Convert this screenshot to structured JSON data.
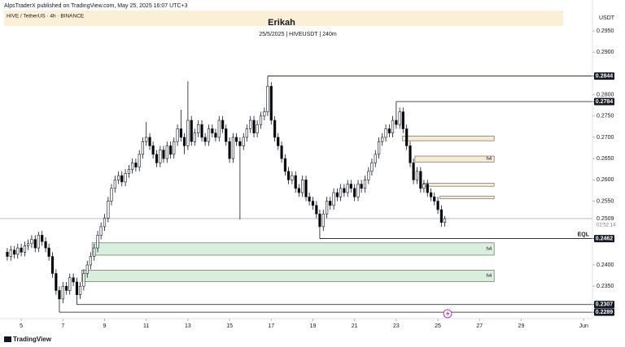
{
  "chart_data": {
    "type": "candlestick",
    "attribution": "AlpsTraderX published on TradingView.com, May 25, 2025 16:07 UTC+3",
    "symbol": "HIVE / TetherUS · 4h · BINANCE",
    "title": "Erikah",
    "subtitle": "25/5/2025 | HIVEUSDT | 240m",
    "y_unit": "USDT",
    "brand": "TradingView",
    "up_color": "#ffffff",
    "down_color": "#000000",
    "grid": false,
    "xlim": [
      3.98,
      32.42
    ],
    "ylim": [
      0.2274,
      0.2996
    ],
    "xticks": [
      5,
      7,
      9,
      11,
      13,
      15,
      17,
      19,
      21,
      23,
      25,
      27,
      29,
      {
        "value": 32,
        "label": "Jun"
      }
    ],
    "yticks": [
      {
        "value": 0.295,
        "label": "0.2950"
      },
      {
        "value": 0.29,
        "label": "0.2900"
      },
      {
        "value": 0.28,
        "label": "0.2800"
      },
      {
        "value": 0.275,
        "label": "0.2750"
      },
      {
        "value": 0.27,
        "label": "0.2700"
      },
      {
        "value": 0.265,
        "label": "0.2650"
      },
      {
        "value": 0.26,
        "label": "0.2600"
      },
      {
        "value": 0.255,
        "label": "0.2550"
      },
      {
        "value": 0.24,
        "label": "0.2400"
      },
      {
        "value": 0.235,
        "label": "0.2350"
      }
    ],
    "x": [
      4.33,
      4.5,
      4.67,
      4.83,
      5,
      5.17,
      5.33,
      5.5,
      5.67,
      5.83,
      6,
      6.17,
      6.33,
      6.5,
      6.67,
      6.83,
      7,
      7.17,
      7.33,
      7.5,
      7.67,
      7.83,
      8,
      8.17,
      8.33,
      8.5,
      8.67,
      8.83,
      9,
      9.17,
      9.33,
      9.5,
      9.67,
      9.83,
      10,
      10.17,
      10.33,
      10.5,
      10.67,
      10.83,
      11,
      11.17,
      11.33,
      11.5,
      11.67,
      11.83,
      12,
      12.17,
      12.33,
      12.5,
      12.67,
      12.83,
      13,
      13.17,
      13.33,
      13.5,
      13.67,
      13.83,
      14,
      14.17,
      14.33,
      14.5,
      14.67,
      14.83,
      15,
      15.17,
      15.33,
      15.5,
      15.67,
      15.83,
      16,
      16.17,
      16.33,
      16.5,
      16.67,
      16.83,
      17,
      17.17,
      17.33,
      17.5,
      17.67,
      17.83,
      18,
      18.17,
      18.33,
      18.5,
      18.67,
      18.83,
      19,
      19.17,
      19.33,
      19.5,
      19.67,
      19.83,
      20,
      20.17,
      20.33,
      20.5,
      20.67,
      20.83,
      21,
      21.17,
      21.33,
      21.5,
      21.67,
      21.83,
      22,
      22.17,
      22.33,
      22.5,
      22.67,
      22.83,
      23,
      23.17,
      23.33,
      23.5,
      23.67,
      23.83,
      24,
      24.17,
      24.33,
      24.5,
      24.67,
      24.83,
      25,
      25.17,
      25.33
    ],
    "open": [
      0.243,
      0.242,
      0.2435,
      0.2425,
      0.244,
      0.243,
      0.2445,
      0.245,
      0.246,
      0.244,
      0.247,
      0.2455,
      0.244,
      0.242,
      0.238,
      0.234,
      0.232,
      0.235,
      0.234,
      0.237,
      0.236,
      0.233,
      0.235,
      0.238,
      0.24,
      0.242,
      0.244,
      0.247,
      0.249,
      0.251,
      0.255,
      0.258,
      0.26,
      0.261,
      0.2595,
      0.2615,
      0.2625,
      0.264,
      0.263,
      0.266,
      0.269,
      0.27,
      0.268,
      0.266,
      0.264,
      0.267,
      0.265,
      0.268,
      0.266,
      0.269,
      0.272,
      0.27,
      0.268,
      0.274,
      0.269,
      0.271,
      0.273,
      0.27,
      0.269,
      0.272,
      0.271,
      0.27,
      0.274,
      0.272,
      0.269,
      0.265,
      0.27,
      0.269,
      0.268,
      0.27,
      0.272,
      0.274,
      0.271,
      0.273,
      0.275,
      0.276,
      0.282,
      0.274,
      0.27,
      0.268,
      0.265,
      0.262,
      0.26,
      0.261,
      0.258,
      0.257,
      0.26,
      0.256,
      0.255,
      0.254,
      0.252,
      0.249,
      0.252,
      0.255,
      0.254,
      0.257,
      0.256,
      0.258,
      0.257,
      0.259,
      0.258,
      0.256,
      0.259,
      0.258,
      0.26,
      0.262,
      0.264,
      0.266,
      0.269,
      0.27,
      0.272,
      0.271,
      0.274,
      0.273,
      0.276,
      0.272,
      0.268,
      0.264,
      0.26,
      0.262,
      0.258,
      0.259,
      0.257,
      0.256,
      0.255,
      0.253,
      0.25
    ],
    "high": [
      0.244,
      0.2445,
      0.2445,
      0.245,
      0.245,
      0.2455,
      0.246,
      0.247,
      0.247,
      0.2478,
      0.248,
      0.2465,
      0.245,
      0.243,
      0.239,
      0.235,
      0.236,
      0.236,
      0.238,
      0.238,
      0.237,
      0.236,
      0.239,
      0.241,
      0.243,
      0.245,
      0.248,
      0.25,
      0.252,
      0.256,
      0.259,
      0.261,
      0.262,
      0.262,
      0.2625,
      0.2635,
      0.265,
      0.265,
      0.267,
      0.27,
      0.2736,
      0.271,
      0.269,
      0.267,
      0.268,
      0.268,
      0.269,
      0.269,
      0.27,
      0.273,
      0.2765,
      0.271,
      0.2832,
      0.275,
      0.272,
      0.274,
      0.274,
      0.271,
      0.273,
      0.273,
      0.272,
      0.275,
      0.275,
      0.273,
      0.27,
      0.271,
      0.271,
      0.27,
      0.271,
      0.273,
      0.275,
      0.275,
      0.274,
      0.276,
      0.277,
      0.2844,
      0.283,
      0.275,
      0.271,
      0.269,
      0.266,
      0.263,
      0.262,
      0.262,
      0.259,
      0.261,
      0.261,
      0.257,
      0.256,
      0.255,
      0.253,
      0.253,
      0.256,
      0.256,
      0.258,
      0.258,
      0.259,
      0.259,
      0.26,
      0.26,
      0.259,
      0.26,
      0.26,
      0.261,
      0.263,
      0.265,
      0.267,
      0.27,
      0.271,
      0.273,
      0.273,
      0.275,
      0.2784,
      0.277,
      0.277,
      0.273,
      0.269,
      0.265,
      0.263,
      0.263,
      0.26,
      0.26,
      0.258,
      0.257,
      0.256,
      0.254,
      0.2515
    ],
    "low": [
      0.241,
      0.241,
      0.2415,
      0.2415,
      0.242,
      0.242,
      0.2435,
      0.244,
      0.243,
      0.243,
      0.2445,
      0.243,
      0.241,
      0.237,
      0.233,
      0.2289,
      0.231,
      0.233,
      0.233,
      0.235,
      0.2307,
      0.232,
      0.234,
      0.237,
      0.239,
      0.241,
      0.243,
      0.246,
      0.248,
      0.25,
      0.254,
      0.257,
      0.259,
      0.2585,
      0.2585,
      0.2605,
      0.2615,
      0.262,
      0.262,
      0.265,
      0.268,
      0.267,
      0.265,
      0.263,
      0.263,
      0.264,
      0.264,
      0.265,
      0.265,
      0.268,
      0.269,
      0.266,
      0.267,
      0.268,
      0.268,
      0.27,
      0.269,
      0.268,
      0.268,
      0.27,
      0.269,
      0.269,
      0.271,
      0.268,
      0.264,
      0.264,
      0.268,
      0.2507,
      0.267,
      0.269,
      0.271,
      0.27,
      0.27,
      0.272,
      0.274,
      0.275,
      0.273,
      0.269,
      0.267,
      0.264,
      0.261,
      0.259,
      0.259,
      0.257,
      0.256,
      0.256,
      0.255,
      0.254,
      0.253,
      0.251,
      0.2462,
      0.248,
      0.251,
      0.253,
      0.253,
      0.255,
      0.255,
      0.256,
      0.256,
      0.257,
      0.255,
      0.255,
      0.257,
      0.257,
      0.259,
      0.261,
      0.263,
      0.265,
      0.268,
      0.269,
      0.27,
      0.27,
      0.272,
      0.272,
      0.271,
      0.267,
      0.263,
      0.259,
      0.259,
      0.257,
      0.257,
      0.256,
      0.255,
      0.254,
      0.252,
      0.249,
      0.249
    ],
    "close": [
      0.242,
      0.2435,
      0.2425,
      0.244,
      0.243,
      0.2445,
      0.245,
      0.246,
      0.244,
      0.247,
      0.2455,
      0.244,
      0.242,
      0.238,
      0.234,
      0.232,
      0.235,
      0.234,
      0.237,
      0.236,
      0.233,
      0.235,
      0.238,
      0.24,
      0.242,
      0.244,
      0.247,
      0.249,
      0.251,
      0.255,
      0.258,
      0.26,
      0.261,
      0.2595,
      0.2615,
      0.2625,
      0.264,
      0.263,
      0.266,
      0.269,
      0.27,
      0.268,
      0.266,
      0.264,
      0.267,
      0.265,
      0.268,
      0.266,
      0.269,
      0.272,
      0.27,
      0.268,
      0.274,
      0.269,
      0.271,
      0.273,
      0.27,
      0.269,
      0.272,
      0.271,
      0.27,
      0.274,
      0.272,
      0.269,
      0.265,
      0.27,
      0.269,
      0.268,
      0.27,
      0.272,
      0.274,
      0.271,
      0.273,
      0.275,
      0.276,
      0.282,
      0.274,
      0.27,
      0.268,
      0.265,
      0.262,
      0.26,
      0.261,
      0.258,
      0.257,
      0.26,
      0.256,
      0.255,
      0.254,
      0.252,
      0.249,
      0.252,
      0.255,
      0.254,
      0.257,
      0.256,
      0.258,
      0.257,
      0.259,
      0.258,
      0.256,
      0.259,
      0.258,
      0.26,
      0.262,
      0.264,
      0.266,
      0.269,
      0.27,
      0.272,
      0.271,
      0.274,
      0.273,
      0.276,
      0.272,
      0.268,
      0.264,
      0.26,
      0.262,
      0.258,
      0.259,
      0.257,
      0.256,
      0.255,
      0.253,
      0.25,
      0.2509
    ],
    "last_price": 0.2509,
    "countdown": "02:52:14",
    "levels": [
      {
        "value": 0.2844,
        "from": 16.83
      },
      {
        "value": 0.2784,
        "from": 23
      },
      {
        "value": 0.2462,
        "from": 19.33,
        "note": "EQL"
      },
      {
        "value": 0.2307,
        "from": 7.67
      },
      {
        "value": 0.2289,
        "from": 6.83
      }
    ],
    "zones": [
      {
        "from": 8.4,
        "to": 27.7,
        "low": 0.2423,
        "high": 0.2452,
        "color": "#d9efdd",
        "label": "h4"
      },
      {
        "from": 7.9,
        "to": 27.7,
        "low": 0.2361,
        "high": 0.2388,
        "color": "#d9efdd",
        "label": "h4"
      },
      {
        "from": 23.3,
        "to": 27.7,
        "low": 0.2692,
        "high": 0.2703,
        "color": "#f7ecd2"
      },
      {
        "from": 23.9,
        "to": 27.7,
        "low": 0.2642,
        "high": 0.2656,
        "color": "#f7ecd2",
        "label": "h4"
      },
      {
        "from": 24.3,
        "to": 27.7,
        "low": 0.2585,
        "high": 0.2592,
        "color": "#f7ecd2"
      },
      {
        "from": 25.1,
        "to": 27.7,
        "low": 0.2556,
        "high": 0.2562,
        "color": "#f7ecd2"
      }
    ]
  }
}
